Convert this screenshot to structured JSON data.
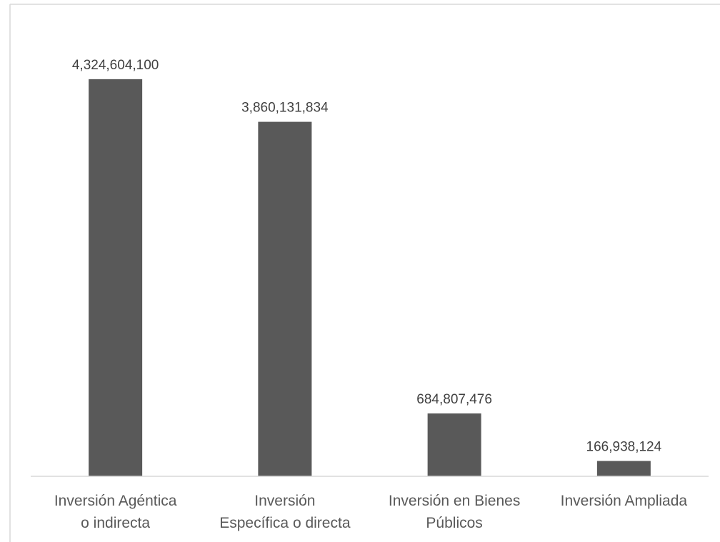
{
  "chart_data": {
    "type": "bar",
    "title": "",
    "xlabel": "",
    "ylabel": "",
    "categories": [
      [
        "Inversión Agéntica",
        "o indirecta"
      ],
      [
        "Inversión",
        "Específica o directa"
      ],
      [
        "Inversión en Bienes",
        "Públicos"
      ],
      [
        "Inversión Ampliada"
      ]
    ],
    "values": [
      4324604100,
      3860131834,
      684807476,
      166938124
    ],
    "data_labels": [
      "4,324,604,100",
      "3,860,131,834",
      "684,807,476",
      "166,938,124"
    ],
    "ylim": [
      0,
      5000000000
    ],
    "grid": false,
    "legend": "none",
    "colors": {
      "bar": "#595959",
      "axis": "#d9d9d9",
      "frame": "#d9d9d9",
      "data_label": "#404040",
      "category_label": "#595959"
    }
  }
}
